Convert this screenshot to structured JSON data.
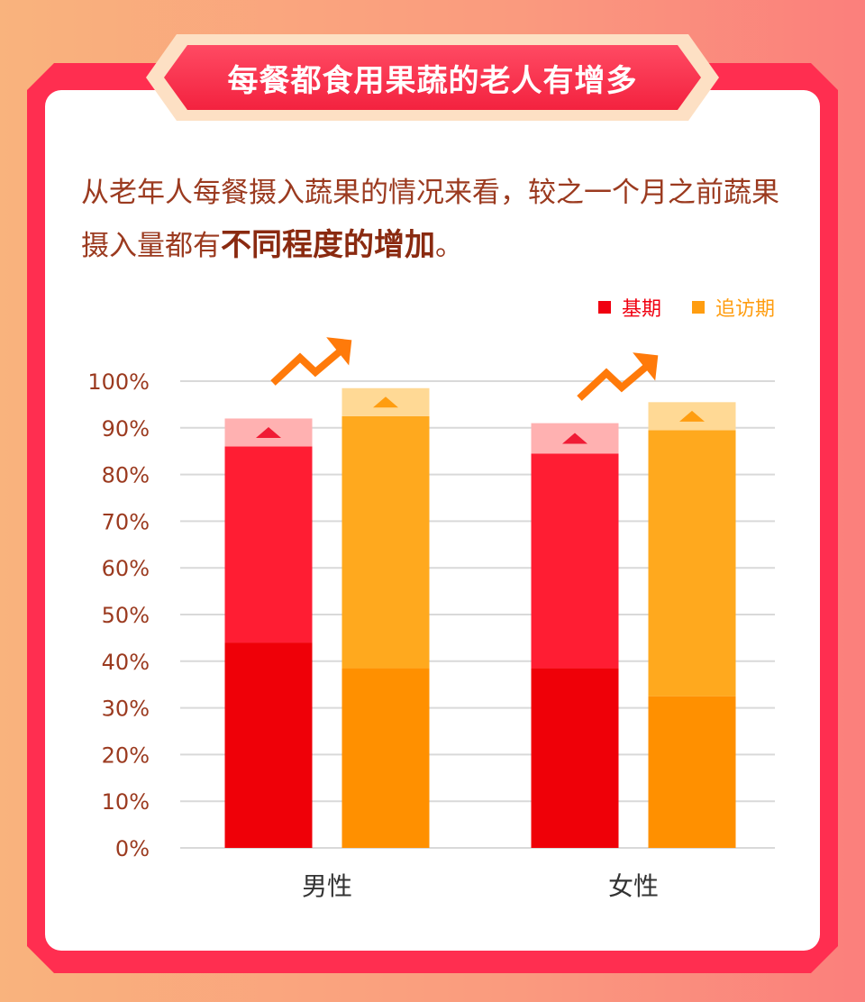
{
  "banner": {
    "title": "每餐都食用果蔬的老人有增多"
  },
  "intro": {
    "text_a": "从老年人每餐摄入蔬果的情况来看，较之一个月之前蔬果摄入量都有",
    "text_em": "不同程度的增加",
    "text_end": "。"
  },
  "colors": {
    "baseline_top": "#ff1d33",
    "baseline_bottom": "#ef0008",
    "baseline_increase": "#ffb1b1",
    "followup_top": "#ffa91e",
    "followup_bottom": "#ff9000",
    "followup_increase": "#ffd995",
    "arrow": "#ff7a0a",
    "text": "#9b3a1f",
    "grid": "#d9d9d9"
  },
  "chart_data": {
    "type": "bar",
    "stacked": true,
    "categories": [
      "男性",
      "女性"
    ],
    "legend": [
      {
        "label": "基期",
        "color": "#f00010"
      },
      {
        "label": "追访期",
        "color": "#ff9d10"
      }
    ],
    "series": [
      {
        "name": "基期",
        "bottom": [
          44,
          38.5
        ],
        "top": [
          42,
          46
        ],
        "increase": [
          6,
          6.5
        ]
      },
      {
        "name": "追访期",
        "bottom": [
          38.5,
          32.5
        ],
        "top": [
          54,
          57
        ],
        "increase": [
          6,
          6
        ]
      }
    ],
    "ylim": [
      0,
      100
    ],
    "yticks": [
      "0%",
      "10%",
      "20%",
      "30%",
      "40%",
      "50%",
      "60%",
      "70%",
      "80%",
      "90%",
      "100%"
    ],
    "grid": true,
    "legend_position": "top-right"
  }
}
